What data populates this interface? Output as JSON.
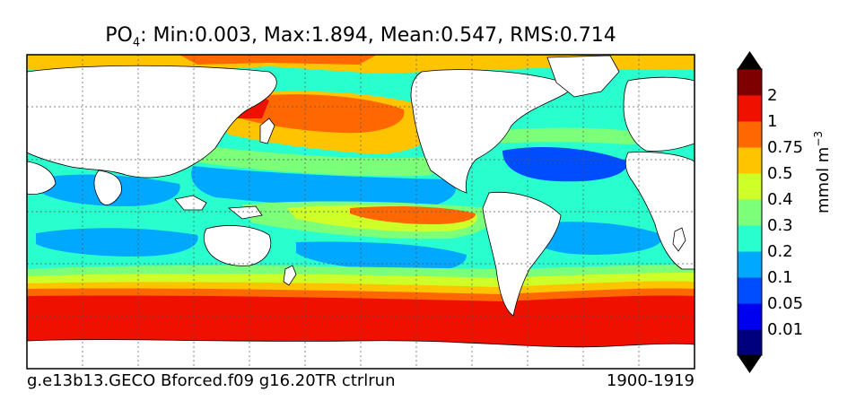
{
  "title": {
    "variable": "PO",
    "variable_sub": "4",
    "stats": ": Min:0.003, Max:1.894, Mean:0.547, RMS:0.714"
  },
  "footer": {
    "run_name": "g.e13b13.GECO Bforced.f09 g16.20TR ctrlrun",
    "period": "1900-1919"
  },
  "colorbar": {
    "unit_base": "mmol m",
    "unit_exp": "−3",
    "levels": [
      "0.01",
      "0.05",
      "0.1",
      "0.2",
      "0.3",
      "0.4",
      "0.5",
      "0.75",
      "1",
      "2"
    ],
    "colors": [
      "#00007f",
      "#0000f0",
      "#004cff",
      "#00a8ff",
      "#29ffce",
      "#7cff79",
      "#ceff29",
      "#ffc400",
      "#ff6800",
      "#f01000",
      "#7f0000"
    ]
  },
  "chart_data": {
    "type": "heatmap",
    "projection": "equirectangular",
    "grid": true,
    "value_stats": {
      "min": 0.003,
      "max": 1.894,
      "mean": 0.547,
      "rms": 0.714
    },
    "legend": "right colorbar"
  }
}
